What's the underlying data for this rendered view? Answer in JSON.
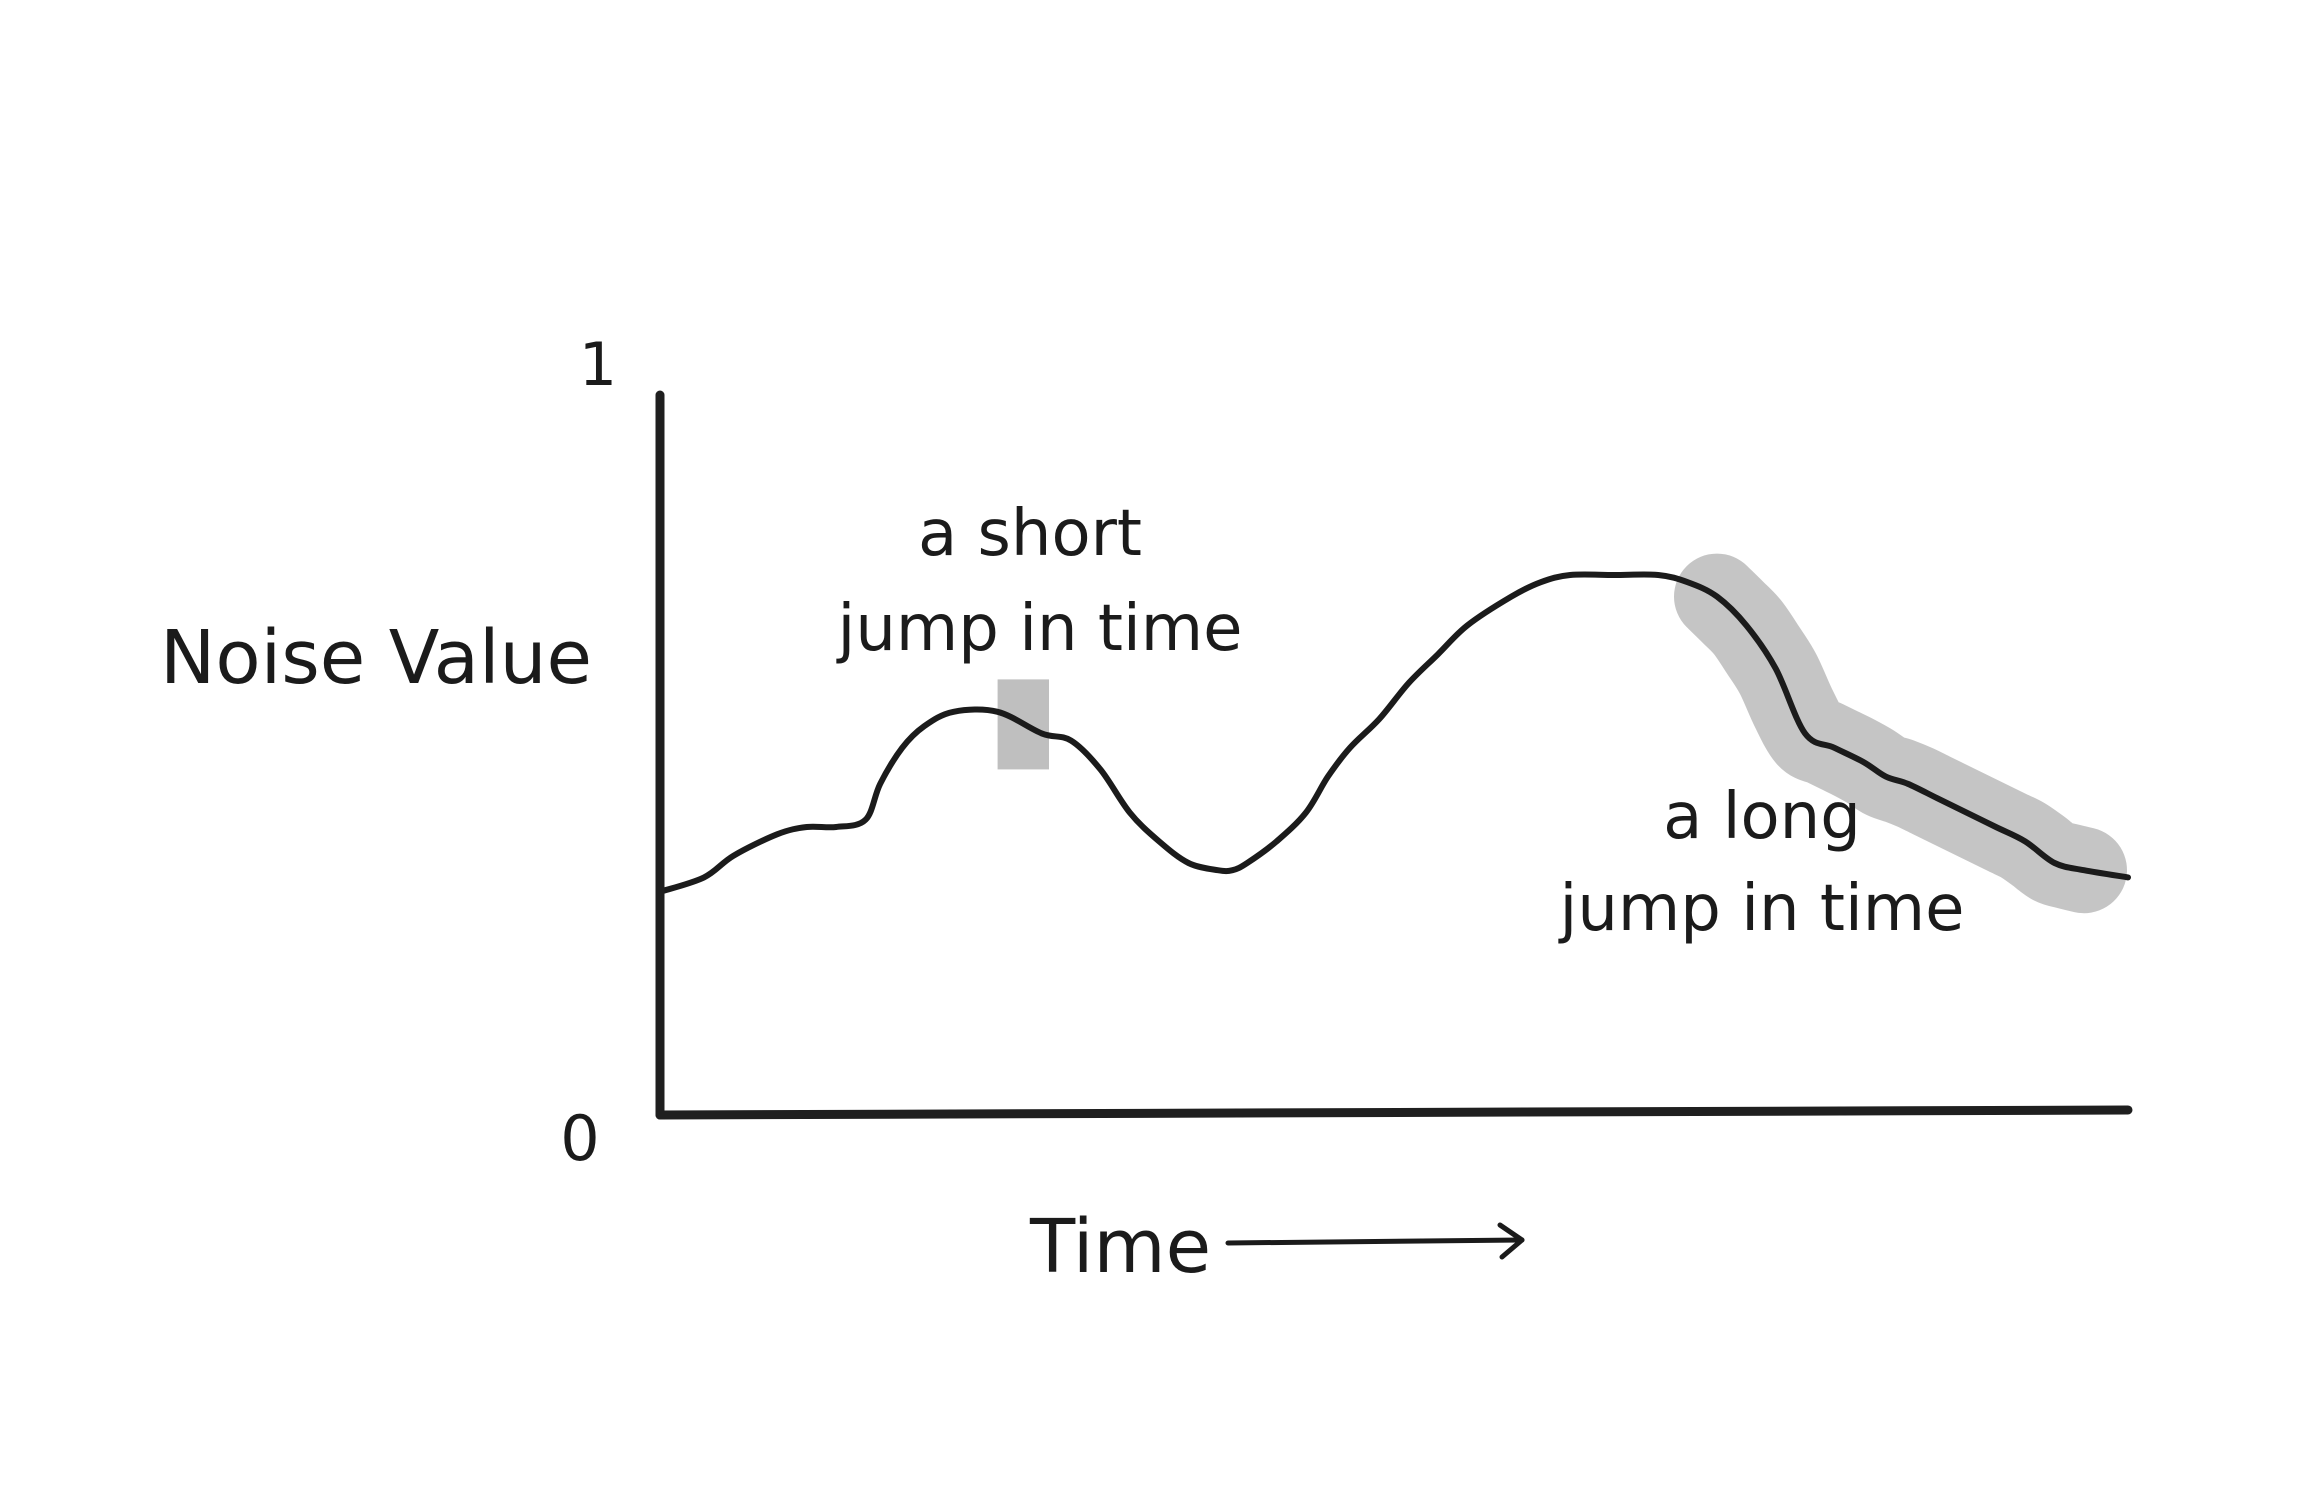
{
  "chart_data": {
    "type": "line",
    "ylabel": "Noise Value",
    "xlabel": "Time",
    "ylim": [
      0,
      1
    ],
    "y_ticks": [
      "0",
      "1"
    ],
    "grid": false,
    "axis_color": "#1f1f1f",
    "line_color": "#1b1b1b",
    "highlight_color": "#bcbcbc",
    "series": [
      {
        "x": [
          0,
          0.03,
          0.05,
          0.08,
          0.1,
          0.12,
          0.14,
          0.15,
          0.165,
          0.18,
          0.2,
          0.23,
          0.26,
          0.28,
          0.3,
          0.32,
          0.34,
          0.36,
          0.38,
          0.39,
          0.4,
          0.42,
          0.44,
          0.455,
          0.47,
          0.49,
          0.51,
          0.53,
          0.55,
          0.58,
          0.6,
          0.62,
          0.65,
          0.68,
          0.7,
          0.72,
          0.74,
          0.76,
          0.78,
          0.8,
          0.82,
          0.835,
          0.85,
          0.87,
          0.89,
          0.91,
          0.93,
          0.95,
          0.97,
          1.0
        ],
        "y": [
          0.31,
          0.33,
          0.36,
          0.39,
          0.4,
          0.4,
          0.41,
          0.46,
          0.51,
          0.54,
          0.56,
          0.56,
          0.53,
          0.52,
          0.48,
          0.42,
          0.38,
          0.35,
          0.34,
          0.34,
          0.35,
          0.38,
          0.42,
          0.47,
          0.51,
          0.55,
          0.6,
          0.64,
          0.68,
          0.72,
          0.74,
          0.75,
          0.75,
          0.75,
          0.74,
          0.72,
          0.68,
          0.62,
          0.53,
          0.51,
          0.49,
          0.47,
          0.46,
          0.44,
          0.42,
          0.4,
          0.38,
          0.35,
          0.34,
          0.33
        ]
      }
    ],
    "annotations": [
      {
        "line1": "a short",
        "line2": "jump in time"
      },
      {
        "line1": "a long",
        "line2": "jump in time"
      }
    ],
    "highlights": [
      {
        "label": "short",
        "x_range": [
          0.23,
          0.265
        ]
      },
      {
        "label": "long",
        "x_range": [
          0.72,
          0.97
        ]
      }
    ]
  }
}
